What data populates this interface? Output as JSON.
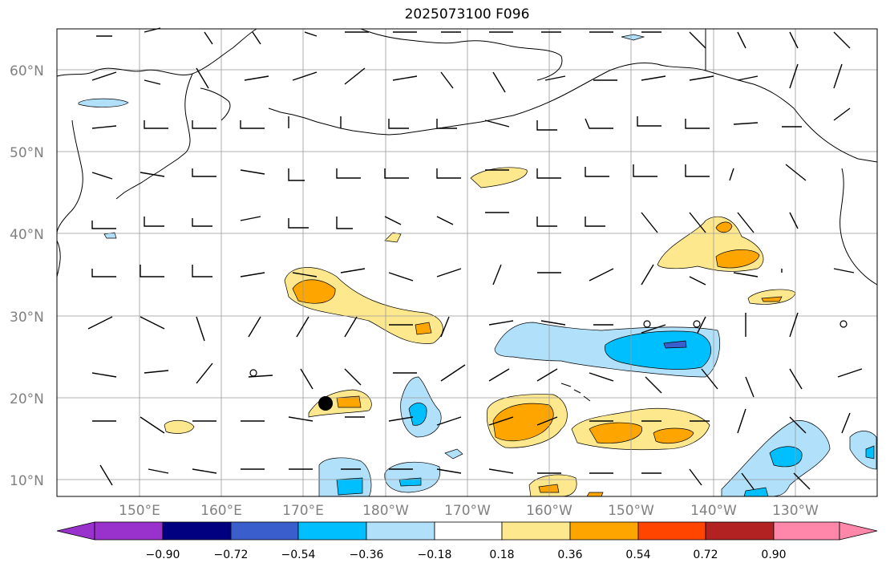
{
  "title": "2025073100 F096",
  "map": {
    "lat_labels": [
      "60°N",
      "50°N",
      "40°N",
      "30°N",
      "20°N",
      "10°N"
    ],
    "lon_labels": [
      "150°E",
      "160°E",
      "170°E",
      "180°W",
      "170°W",
      "160°W",
      "150°W",
      "140°W",
      "130°W"
    ],
    "extent": {
      "lon_min": 140,
      "lon_max": 240,
      "lat_min": 8,
      "lat_max": 65
    },
    "storm_marker": {
      "lon": 173,
      "lat": 19.3,
      "label": ""
    }
  },
  "colorbar": {
    "ticks": [
      "−0.90",
      "−0.72",
      "−0.54",
      "−0.36",
      "−0.18",
      "0.18",
      "0.36",
      "0.54",
      "0.72",
      "0.90"
    ],
    "colors": [
      "#9932cc",
      "#000080",
      "#3a5fcd",
      "#00bfff",
      "#b0e0fa",
      "#ffffff",
      "#fde88d",
      "#ffa500",
      "#ff4500",
      "#b22222",
      "#ff88aa"
    ]
  }
}
